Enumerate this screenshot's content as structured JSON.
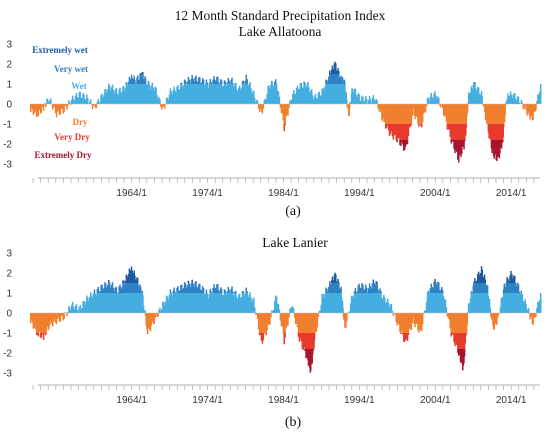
{
  "chart_data": [
    {
      "type": "area",
      "title": "12 Month Standard Precipitation Index",
      "subtitle": "Lake Allatoona",
      "panel_label": "(a)",
      "y_ticks": [
        "3",
        "2",
        "1",
        "0",
        "-1",
        "-2",
        "-3"
      ],
      "ylim": [
        -3.5,
        3.2
      ],
      "x_ticks": [
        {
          "label": "1964/1",
          "year": 1964
        },
        {
          "label": "1974/1",
          "year": 1974
        },
        {
          "label": "1984/1",
          "year": 1984
        },
        {
          "label": "1994/1",
          "year": 1994
        },
        {
          "label": "2004/1",
          "year": 2004
        },
        {
          "label": "2014/1",
          "year": 2014
        }
      ],
      "x_range": [
        1950.6,
        2017.8
      ],
      "categories": [
        {
          "name": "Extremely wet",
          "color": "#1f5a9e",
          "level": 2.7
        },
        {
          "name": "Very wet",
          "color": "#2f82c4",
          "level": 1.75
        },
        {
          "name": "Wet",
          "color": "#45aee0",
          "level": 0.9
        },
        {
          "name": "Dry",
          "color": "#f07f2e",
          "level": -0.9
        },
        {
          "name": "Very Dry",
          "color": "#e83a2c",
          "level": -1.65
        },
        {
          "name": "Extremely Dry",
          "color": "#a8142e",
          "level": -2.55
        }
      ],
      "series_points": [
        [
          1950.6,
          -0.3
        ],
        [
          1951.5,
          -0.5
        ],
        [
          1952.3,
          -0.2
        ],
        [
          1953.0,
          0.3
        ],
        [
          1954.0,
          -0.5
        ],
        [
          1955.0,
          -0.3
        ],
        [
          1956.0,
          0.2
        ],
        [
          1957.0,
          0.5
        ],
        [
          1958.0,
          0.3
        ],
        [
          1959.0,
          -0.2
        ],
        [
          1960.0,
          0.4
        ],
        [
          1961.0,
          0.9
        ],
        [
          1962.0,
          0.6
        ],
        [
          1963.0,
          0.8
        ],
        [
          1963.8,
          1.3
        ],
        [
          1964.5,
          1.2
        ],
        [
          1965.3,
          1.5
        ],
        [
          1966.0,
          1.0
        ],
        [
          1967.0,
          0.8
        ],
        [
          1968.0,
          -0.3
        ],
        [
          1969.0,
          0.6
        ],
        [
          1970.0,
          0.8
        ],
        [
          1971.0,
          1.1
        ],
        [
          1972.0,
          1.3
        ],
        [
          1973.0,
          1.2
        ],
        [
          1974.0,
          1.0
        ],
        [
          1975.0,
          1.3
        ],
        [
          1976.0,
          1.0
        ],
        [
          1977.0,
          1.2
        ],
        [
          1978.0,
          0.7
        ],
        [
          1979.0,
          1.3
        ],
        [
          1980.0,
          0.5
        ],
        [
          1981.0,
          -0.5
        ],
        [
          1982.0,
          0.9
        ],
        [
          1983.0,
          1.1
        ],
        [
          1984.0,
          -1.2
        ],
        [
          1985.0,
          0.4
        ],
        [
          1986.0,
          0.9
        ],
        [
          1987.0,
          1.0
        ],
        [
          1988.0,
          0.3
        ],
        [
          1989.0,
          0.6
        ],
        [
          1990.0,
          1.5
        ],
        [
          1990.7,
          2.0
        ],
        [
          1991.5,
          1.3
        ],
        [
          1992.0,
          1.0
        ],
        [
          1992.5,
          -0.6
        ],
        [
          1993.0,
          0.8
        ],
        [
          1994.0,
          0.3
        ],
        [
          1995.0,
          0.2
        ],
        [
          1996.0,
          0.3
        ],
        [
          1997.0,
          -0.8
        ],
        [
          1998.0,
          -1.5
        ],
        [
          1999.0,
          -1.8
        ],
        [
          2000.0,
          -2.3
        ],
        [
          2001.0,
          -0.4
        ],
        [
          2002.0,
          -1.2
        ],
        [
          2003.0,
          0.3
        ],
        [
          2004.0,
          0.5
        ],
        [
          2005.0,
          -0.4
        ],
        [
          2006.0,
          -1.8
        ],
        [
          2007.0,
          -2.8
        ],
        [
          2007.8,
          -2.0
        ],
        [
          2008.3,
          0.4
        ],
        [
          2009.0,
          1.0
        ],
        [
          2010.0,
          0.5
        ],
        [
          2010.7,
          -1.0
        ],
        [
          2011.5,
          -2.5
        ],
        [
          2012.2,
          -2.8
        ],
        [
          2012.8,
          -1.8
        ],
        [
          2013.3,
          0.3
        ],
        [
          2014.0,
          0.5
        ],
        [
          2015.0,
          0.2
        ],
        [
          2016.0,
          -0.4
        ],
        [
          2016.8,
          -0.8
        ],
        [
          2017.8,
          1.0
        ]
      ]
    },
    {
      "type": "area",
      "title": "Lake Lanier",
      "panel_label": "(b)",
      "y_ticks": [
        "3",
        "2",
        "1",
        "0",
        "-1",
        "-2",
        "-3"
      ],
      "ylim": [
        -3.5,
        3.2
      ],
      "x_ticks": [
        {
          "label": "1964/1",
          "year": 1964
        },
        {
          "label": "1974/1",
          "year": 1974
        },
        {
          "label": "1984/1",
          "year": 1984
        },
        {
          "label": "1994/1",
          "year": 1994
        },
        {
          "label": "2004/1",
          "year": 2004
        },
        {
          "label": "2014/1",
          "year": 2014
        }
      ],
      "x_range": [
        1950.6,
        2017.8
      ],
      "series_points": [
        [
          1950.6,
          -0.4
        ],
        [
          1951.5,
          -1.0
        ],
        [
          1952.3,
          -1.2
        ],
        [
          1953.0,
          -0.6
        ],
        [
          1954.0,
          -0.4
        ],
        [
          1955.0,
          -0.2
        ],
        [
          1956.0,
          0.4
        ],
        [
          1957.0,
          0.2
        ],
        [
          1958.0,
          0.7
        ],
        [
          1959.0,
          1.0
        ],
        [
          1960.0,
          1.3
        ],
        [
          1961.0,
          1.5
        ],
        [
          1962.0,
          1.1
        ],
        [
          1963.0,
          1.6
        ],
        [
          1963.8,
          2.2
        ],
        [
          1964.5,
          1.8
        ],
        [
          1965.3,
          1.0
        ],
        [
          1966.0,
          -1.0
        ],
        [
          1967.0,
          -0.3
        ],
        [
          1968.0,
          0.4
        ],
        [
          1969.0,
          1.0
        ],
        [
          1970.0,
          1.2
        ],
        [
          1971.0,
          1.4
        ],
        [
          1972.0,
          1.5
        ],
        [
          1973.0,
          1.3
        ],
        [
          1974.0,
          0.9
        ],
        [
          1975.0,
          1.4
        ],
        [
          1976.0,
          1.0
        ],
        [
          1977.0,
          1.2
        ],
        [
          1978.0,
          0.8
        ],
        [
          1979.0,
          1.1
        ],
        [
          1980.0,
          0.6
        ],
        [
          1981.0,
          -1.5
        ],
        [
          1982.0,
          -0.6
        ],
        [
          1983.0,
          0.9
        ],
        [
          1984.0,
          -1.4
        ],
        [
          1985.0,
          0.5
        ],
        [
          1986.0,
          -1.3
        ],
        [
          1987.0,
          -2.2
        ],
        [
          1987.5,
          -2.9
        ],
        [
          1988.0,
          -1.4
        ],
        [
          1989.0,
          0.8
        ],
        [
          1990.0,
          1.4
        ],
        [
          1990.7,
          1.9
        ],
        [
          1991.5,
          1.2
        ],
        [
          1992.0,
          -0.8
        ],
        [
          1993.0,
          0.9
        ],
        [
          1994.0,
          1.4
        ],
        [
          1995.0,
          1.2
        ],
        [
          1996.0,
          1.6
        ],
        [
          1997.0,
          0.8
        ],
        [
          1998.0,
          0.4
        ],
        [
          1999.0,
          -0.6
        ],
        [
          2000.0,
          -1.5
        ],
        [
          2001.0,
          -0.4
        ],
        [
          2002.0,
          -1.0
        ],
        [
          2003.0,
          1.1
        ],
        [
          2004.0,
          1.6
        ],
        [
          2005.0,
          1.0
        ],
        [
          2006.0,
          -1.0
        ],
        [
          2007.0,
          -2.0
        ],
        [
          2007.6,
          -2.8
        ],
        [
          2008.3,
          0.3
        ],
        [
          2009.0,
          1.5
        ],
        [
          2010.0,
          2.2
        ],
        [
          2010.8,
          1.3
        ],
        [
          2011.5,
          -0.8
        ],
        [
          2012.2,
          -0.3
        ],
        [
          2013.0,
          1.4
        ],
        [
          2014.0,
          2.0
        ],
        [
          2015.0,
          1.2
        ],
        [
          2016.0,
          0.3
        ],
        [
          2016.8,
          -0.6
        ],
        [
          2017.8,
          1.0
        ]
      ]
    }
  ]
}
